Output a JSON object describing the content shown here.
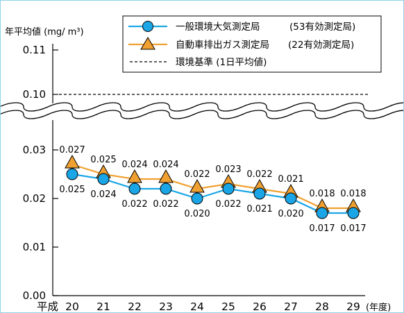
{
  "chart_data": {
    "type": "line",
    "ylabel": "年平均値 (mg/ m³)",
    "x_prefix": "平成",
    "x_unit": "(年度)",
    "categories": [
      "20",
      "21",
      "22",
      "23",
      "24",
      "25",
      "26",
      "27",
      "28",
      "29"
    ],
    "y_ticks": [
      "0.00",
      "0.01",
      "0.02",
      "0.03",
      "0.10",
      "0.11"
    ],
    "series": [
      {
        "name": "一般環境大気測定局",
        "count_note": "(53有効測定局)",
        "color": "#1aa6e6",
        "marker": "circle",
        "values": [
          0.025,
          0.024,
          0.022,
          0.022,
          0.02,
          0.022,
          0.021,
          0.02,
          0.017,
          0.017
        ],
        "labels": [
          "0.025",
          "0.024",
          "0.022",
          "0.022",
          "0.020",
          "0.022",
          "0.021",
          "0.020",
          "0.017",
          "0.017"
        ]
      },
      {
        "name": "自動車排出ガス測定局",
        "count_note": "(22有効測定局)",
        "color": "#f0a030",
        "marker": "triangle",
        "values": [
          0.027,
          0.025,
          0.024,
          0.024,
          0.022,
          0.023,
          0.022,
          0.021,
          0.018,
          0.018
        ],
        "labels": [
          "0.027",
          "0.025",
          "0.024",
          "0.024",
          "0.022",
          "0.023",
          "0.022",
          "0.021",
          "0.018",
          "0.018"
        ]
      }
    ],
    "reference_line": {
      "name": "環境基準 (1日平均値)",
      "value": 0.1,
      "style": "dashed"
    },
    "axis_break": {
      "between": [
        0.03,
        0.1
      ]
    },
    "legend": "top-center",
    "grid": false
  }
}
